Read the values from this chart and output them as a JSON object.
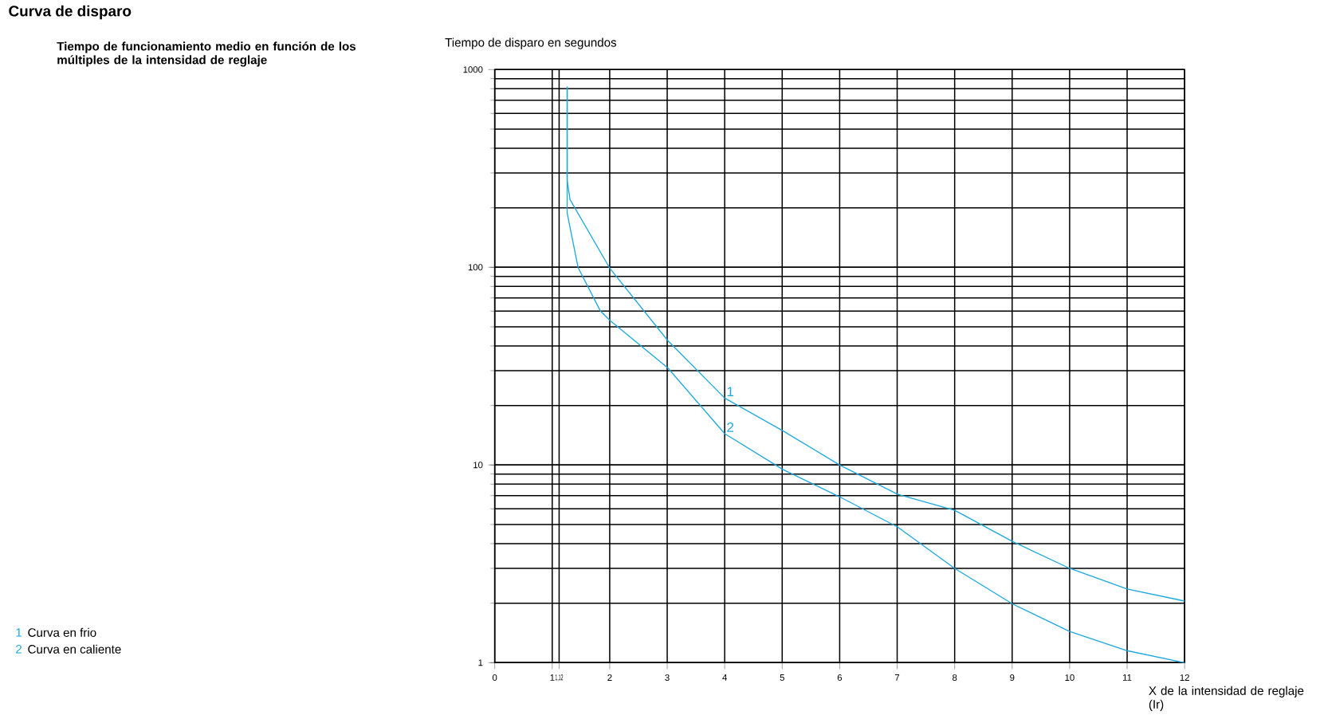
{
  "chart_data": {
    "type": "line",
    "title": "Curva de disparo",
    "subtitle": "Tiempo de funcionamiento medio en función de los múltiples de la intensidad de reglaje",
    "ylabel": "Tiempo de disparo en segundos",
    "xlabel": "X de la intensidad de reglaje (Ir)",
    "log": "y",
    "grid": true,
    "legend": "bottom left",
    "marker": "none",
    "line_style": "solid",
    "xlim": [
      0,
      12
    ],
    "ylim": [
      1,
      1000
    ],
    "xticks": [
      0,
      1,
      {
        "value": 1.12,
        "label": "1,12"
      },
      2,
      3,
      4,
      5,
      6,
      7,
      8,
      9,
      10,
      11,
      12
    ],
    "yticks": [
      1,
      10,
      100,
      1000
    ],
    "series": [
      {
        "name": "1",
        "color": "#1ba8e0",
        "x": [
          1.26,
          1.26,
          1.31,
          2.0,
          3.01,
          4.0,
          5.01,
          6.0,
          7.01,
          8.0,
          9.01,
          10.0,
          11.0,
          12.0
        ],
        "values": [
          820,
          275,
          220,
          99,
          42.6,
          21.8,
          14.9,
          10,
          7.1,
          5.9,
          4.1,
          3.0,
          2.36,
          2.05
        ]
      },
      {
        "name": "2",
        "color": "#1ba8e0",
        "x": [
          1.26,
          1.26,
          1.45,
          1.84,
          2.0,
          3.01,
          4.0,
          5.01,
          6.0,
          7.01,
          8.0,
          9.01,
          10.0,
          11.0,
          12.0
        ],
        "values": [
          820,
          188,
          99.6,
          60,
          54,
          31,
          14.4,
          9.5,
          6.9,
          4.85,
          3.0,
          1.98,
          1.44,
          1.15,
          1.0
        ]
      }
    ],
    "annotations": [
      "Curva en frio",
      "Curva en caliente"
    ]
  }
}
